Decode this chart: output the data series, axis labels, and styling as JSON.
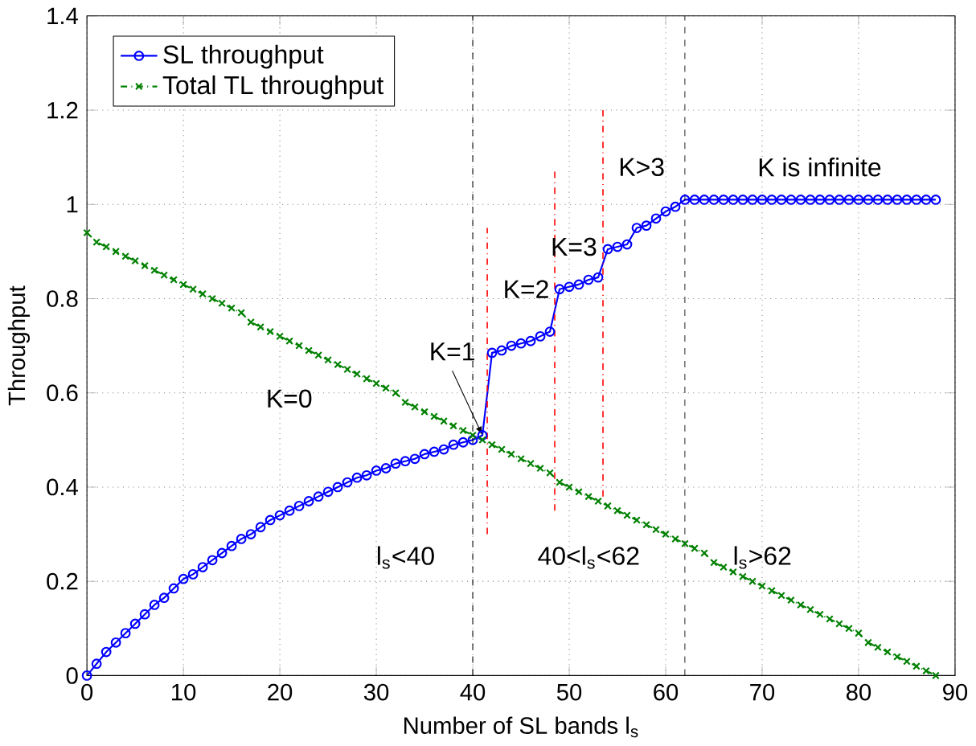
{
  "chart_data": {
    "type": "line",
    "xlabel": "Number of SL bands l$_{s}$",
    "ylabel": "Throughput",
    "x": [
      0,
      1,
      2,
      3,
      4,
      5,
      6,
      7,
      8,
      9,
      10,
      11,
      12,
      13,
      14,
      15,
      16,
      17,
      18,
      19,
      20,
      21,
      22,
      23,
      24,
      25,
      26,
      27,
      28,
      29,
      30,
      31,
      32,
      33,
      34,
      35,
      36,
      37,
      38,
      39,
      40,
      41,
      42,
      43,
      44,
      45,
      46,
      47,
      48,
      49,
      50,
      51,
      52,
      53,
      54,
      55,
      56,
      57,
      58,
      59,
      60,
      61,
      62,
      63,
      64,
      65,
      66,
      67,
      68,
      69,
      70,
      71,
      72,
      73,
      74,
      75,
      76,
      77,
      78,
      79,
      80,
      81,
      82,
      83,
      84,
      85,
      86,
      87,
      88
    ],
    "series": [
      {
        "name": "SL throughput",
        "color": "#0000ff",
        "marker": "circle",
        "line_style": "solid",
        "values": [
          0,
          0.025,
          0.05,
          0.07,
          0.09,
          0.11,
          0.13,
          0.15,
          0.165,
          0.185,
          0.205,
          0.215,
          0.23,
          0.245,
          0.26,
          0.275,
          0.29,
          0.3,
          0.315,
          0.33,
          0.34,
          0.35,
          0.36,
          0.37,
          0.38,
          0.39,
          0.4,
          0.41,
          0.42,
          0.425,
          0.435,
          0.44,
          0.45,
          0.455,
          0.46,
          0.47,
          0.475,
          0.48,
          0.49,
          0.495,
          0.5,
          0.51,
          0.685,
          0.69,
          0.7,
          0.705,
          0.71,
          0.72,
          0.73,
          0.82,
          0.825,
          0.83,
          0.84,
          0.845,
          0.905,
          0.91,
          0.915,
          0.95,
          0.955,
          0.97,
          0.985,
          0.995,
          1.01,
          1.01,
          1.01,
          1.01,
          1.01,
          1.01,
          1.01,
          1.01,
          1.01,
          1.01,
          1.01,
          1.01,
          1.01,
          1.01,
          1.01,
          1.01,
          1.01,
          1.01,
          1.01,
          1.01,
          1.01,
          1.01,
          1.01,
          1.01,
          1.01,
          1.01,
          1.01
        ]
      },
      {
        "name": "Total TL throughput",
        "color": "#008000",
        "marker": "cross",
        "line_style": "dashed",
        "values": [
          0.94,
          0.92,
          0.91,
          0.9,
          0.89,
          0.88,
          0.87,
          0.86,
          0.85,
          0.84,
          0.83,
          0.82,
          0.81,
          0.8,
          0.79,
          0.78,
          0.77,
          0.75,
          0.74,
          0.73,
          0.72,
          0.71,
          0.7,
          0.69,
          0.68,
          0.67,
          0.66,
          0.65,
          0.64,
          0.63,
          0.62,
          0.61,
          0.6,
          0.58,
          0.57,
          0.56,
          0.55,
          0.54,
          0.53,
          0.52,
          0.51,
          0.5,
          0.49,
          0.48,
          0.47,
          0.46,
          0.45,
          0.44,
          0.43,
          0.41,
          0.4,
          0.39,
          0.38,
          0.37,
          0.36,
          0.35,
          0.34,
          0.33,
          0.32,
          0.31,
          0.3,
          0.29,
          0.28,
          0.27,
          0.26,
          0.24,
          0.23,
          0.22,
          0.21,
          0.2,
          0.19,
          0.18,
          0.17,
          0.16,
          0.15,
          0.14,
          0.13,
          0.12,
          0.11,
          0.1,
          0.09,
          0.07,
          0.06,
          0.05,
          0.04,
          0.03,
          0.02,
          0.01,
          0
        ]
      },
      {
        "type": "line",
        "color": "#ff0000",
        "marker": "none",
        "line_style": "dashed",
        "x": [
          41.5,
          41.5
        ],
        "values": [
          0.3,
          0.95
        ]
      },
      {
        "type": "line",
        "color": "#ff0000",
        "marker": "none",
        "line_style": "dashed",
        "x": [
          48.5,
          48.5
        ],
        "values": [
          0.35,
          1.07
        ]
      },
      {
        "type": "line",
        "color": "#ff0000",
        "marker": "none",
        "line_style": "dashed",
        "x": [
          53.5,
          53.5
        ],
        "values": [
          0.38,
          1.2
        ]
      }
    ],
    "ref_lines": [
      {
        "axis": "x",
        "value": 40,
        "color": "#000000",
        "line_style": "dashed"
      },
      {
        "axis": "x",
        "value": 62,
        "color": "#000000",
        "line_style": "dashed"
      }
    ],
    "annotations": [
      "K=0",
      {
        "text": "K=1",
        "x": 41,
        "y": 0.51
      },
      "K=2",
      "K=3",
      "K>3",
      "K is infinite",
      "l$_{s}$<40",
      "40<l$_{s}$<62",
      "l$_{s}$>62"
    ],
    "xlim": [
      0,
      90
    ],
    "ylim": [
      0,
      1.4
    ],
    "xticks": [
      0,
      10,
      20,
      30,
      40,
      50,
      60,
      70,
      80,
      90
    ],
    "yticks": [
      0,
      0.2,
      0.4,
      0.6,
      0.8,
      1,
      1.2,
      1.4
    ],
    "grid": true,
    "legend": "top left"
  }
}
